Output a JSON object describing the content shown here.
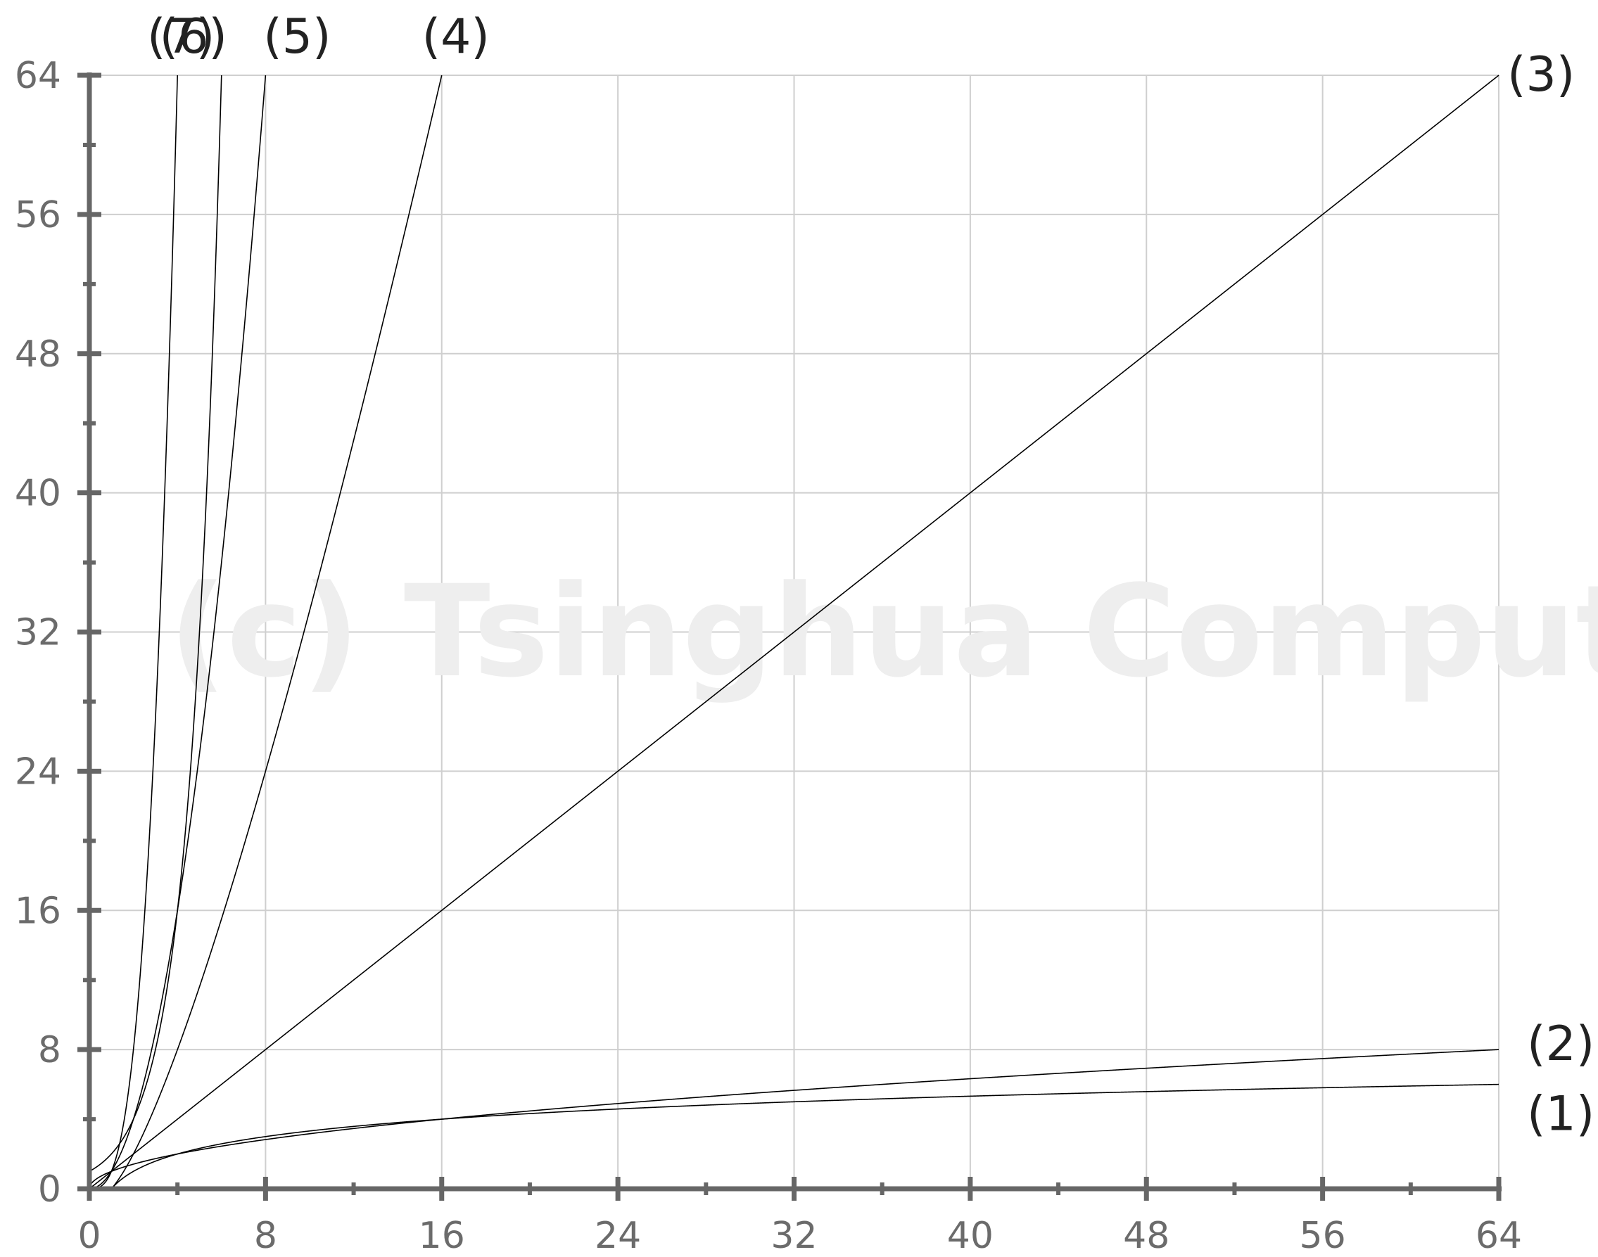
{
  "watermark": "(c) Tsinghua Computer",
  "chart_data": {
    "type": "line",
    "title": "",
    "xlabel": "",
    "ylabel": "",
    "xlim": [
      0,
      64
    ],
    "ylim": [
      0,
      64
    ],
    "x_ticks": [
      0,
      8,
      16,
      24,
      32,
      40,
      48,
      56,
      64
    ],
    "y_ticks": [
      0,
      8,
      16,
      24,
      32,
      40,
      48,
      56,
      64
    ],
    "x_tick_labels": [
      "0",
      "8",
      "16",
      "24",
      "32",
      "40",
      "48",
      "56",
      "64"
    ],
    "y_tick_labels": [
      "0",
      "8",
      "16",
      "24",
      "32",
      "40",
      "48",
      "56",
      "64"
    ],
    "minor_tick_step": 4,
    "grid": true,
    "line_color": "#000000",
    "grid_color": "#cfcfcf",
    "axis_color": "#666666",
    "series": [
      {
        "label": "(1)",
        "formula": "log2(x)",
        "x": [
          1,
          2,
          4,
          8,
          16,
          32,
          64
        ],
        "y": [
          0,
          1,
          2,
          3,
          4,
          5,
          6
        ]
      },
      {
        "label": "(2)",
        "formula": "sqrt(x)",
        "x": [
          0,
          1,
          4,
          9,
          16,
          25,
          36,
          49,
          64
        ],
        "y": [
          0,
          1,
          2,
          3,
          4,
          5,
          6,
          7,
          8
        ]
      },
      {
        "label": "(3)",
        "formula": "x",
        "x": [
          0,
          64
        ],
        "y": [
          0,
          64
        ]
      },
      {
        "label": "(4)",
        "formula": "x*log2(x)",
        "x": [
          1,
          2,
          4,
          8,
          16
        ],
        "y": [
          0,
          2,
          8,
          24,
          64
        ]
      },
      {
        "label": "(5)",
        "formula": "x^2",
        "x": [
          0,
          1,
          2,
          4,
          6,
          8
        ],
        "y": [
          0,
          1,
          4,
          16,
          36,
          64
        ]
      },
      {
        "label": "(6)",
        "formula": "2^x",
        "x": [
          0,
          1,
          2,
          3,
          4,
          5,
          6
        ],
        "y": [
          1,
          2,
          4,
          8,
          16,
          32,
          64
        ]
      },
      {
        "label": "(7)",
        "formula": "x^3",
        "x": [
          0,
          1,
          2,
          3,
          4
        ],
        "y": [
          0,
          1,
          8,
          27,
          64
        ]
      }
    ]
  }
}
